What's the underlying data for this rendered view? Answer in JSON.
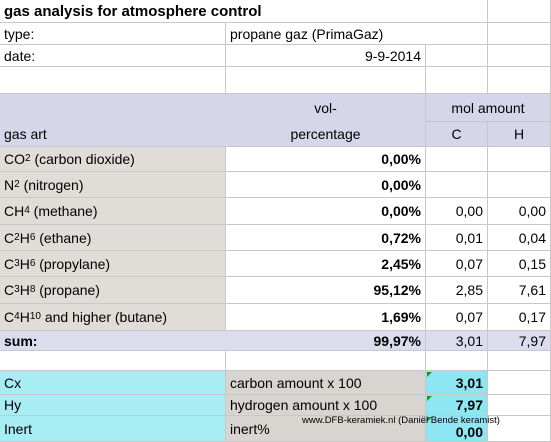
{
  "title": "gas analysis for atmosphere control",
  "meta": {
    "type_label": "type:",
    "type_value": "propane gaz (PrimaGaz)",
    "date_label": "date:",
    "date_value": "9-9-2014"
  },
  "header": {
    "vol_top": "vol-",
    "vol_bottom": "percentage",
    "mol_amount": "mol amount",
    "gas_art": "gas art",
    "c": "C",
    "h": "H"
  },
  "gases": [
    {
      "pre": "CO",
      "sub1": "2",
      "mid": " (carbon dioxide)",
      "sub2": "",
      "post": "",
      "vol": "0,00%",
      "c": "",
      "h": ""
    },
    {
      "pre": "N",
      "sub1": "2",
      "mid": " (nitrogen)",
      "sub2": "",
      "post": "",
      "vol": "0,00%",
      "c": "",
      "h": ""
    },
    {
      "pre": "CH",
      "sub1": "4",
      "mid": " (methane)",
      "sub2": "",
      "post": "",
      "vol": "0,00%",
      "c": "0,00",
      "h": "0,00"
    },
    {
      "pre": "C",
      "sub1": "2",
      "mid": "H",
      "sub2": "6",
      "post": " (ethane)",
      "vol": "0,72%",
      "c": "0,01",
      "h": "0,04"
    },
    {
      "pre": "C",
      "sub1": "3",
      "mid": "H",
      "sub2": "6",
      "post": " (propylane)",
      "vol": "2,45%",
      "c": "0,07",
      "h": "0,15"
    },
    {
      "pre": "C",
      "sub1": "3",
      "mid": "H",
      "sub2": "8",
      "post": " (propane)",
      "vol": "95,12%",
      "c": "2,85",
      "h": "7,61"
    },
    {
      "pre": "C",
      "sub1": "4",
      "mid": "H",
      "sub2": "10",
      "post": " and higher (butane)",
      "vol": "1,69%",
      "c": "0,07",
      "h": "0,17"
    }
  ],
  "sum": {
    "label": "sum:",
    "vol": "99,97%",
    "c": "3,01",
    "h": "7,97"
  },
  "summary": [
    {
      "label": "Cx",
      "desc": "carbon amount x 100",
      "value": "3,01"
    },
    {
      "label": "Hy",
      "desc": "hydrogen amount x 100",
      "value": "7,97"
    },
    {
      "label": "Inert",
      "desc": "inert%",
      "value": "0,00"
    }
  ],
  "watermark": "www.DFB-keramiek.nl (Daniël Bende keramist)",
  "colors": {
    "header_band": "#d6d6ea",
    "gas_label_bg": "#e0dcd8",
    "summary_bg": "#a8ecf4",
    "value_bg": "#8ee6f2"
  }
}
